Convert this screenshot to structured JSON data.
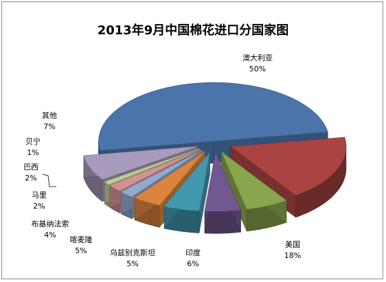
{
  "chart_data": {
    "type": "pie",
    "title": "2013年9月中国棉花进口分国家图",
    "slices": [
      {
        "name": "澳大利亚",
        "value": 50,
        "label": "50%",
        "color": "#4a74aa"
      },
      {
        "name": "美国",
        "value": 18,
        "label": "18%",
        "color": "#aa4442"
      },
      {
        "name": "印度",
        "value": 6,
        "label": "6%",
        "color": "#89a54e"
      },
      {
        "name": "乌兹别克斯坦",
        "value": 5,
        "label": "5%",
        "color": "#71588f"
      },
      {
        "name": "喀麦隆",
        "value": 5,
        "label": "5%",
        "color": "#4198af"
      },
      {
        "name": "布基纳法索",
        "value": 4,
        "label": "4%",
        "color": "#db843d"
      },
      {
        "name": "马里",
        "value": 2,
        "label": "2%",
        "color": "#93a9cf"
      },
      {
        "name": "巴西",
        "value": 2,
        "label": "2%",
        "color": "#d19392"
      },
      {
        "name": "贝宁",
        "value": 1,
        "label": "1%",
        "color": "#b9cd96"
      },
      {
        "name": "其他",
        "value": 7,
        "label": "7%",
        "color": "#a99bbd"
      }
    ],
    "legend": "none",
    "style": "3d-exploded"
  }
}
